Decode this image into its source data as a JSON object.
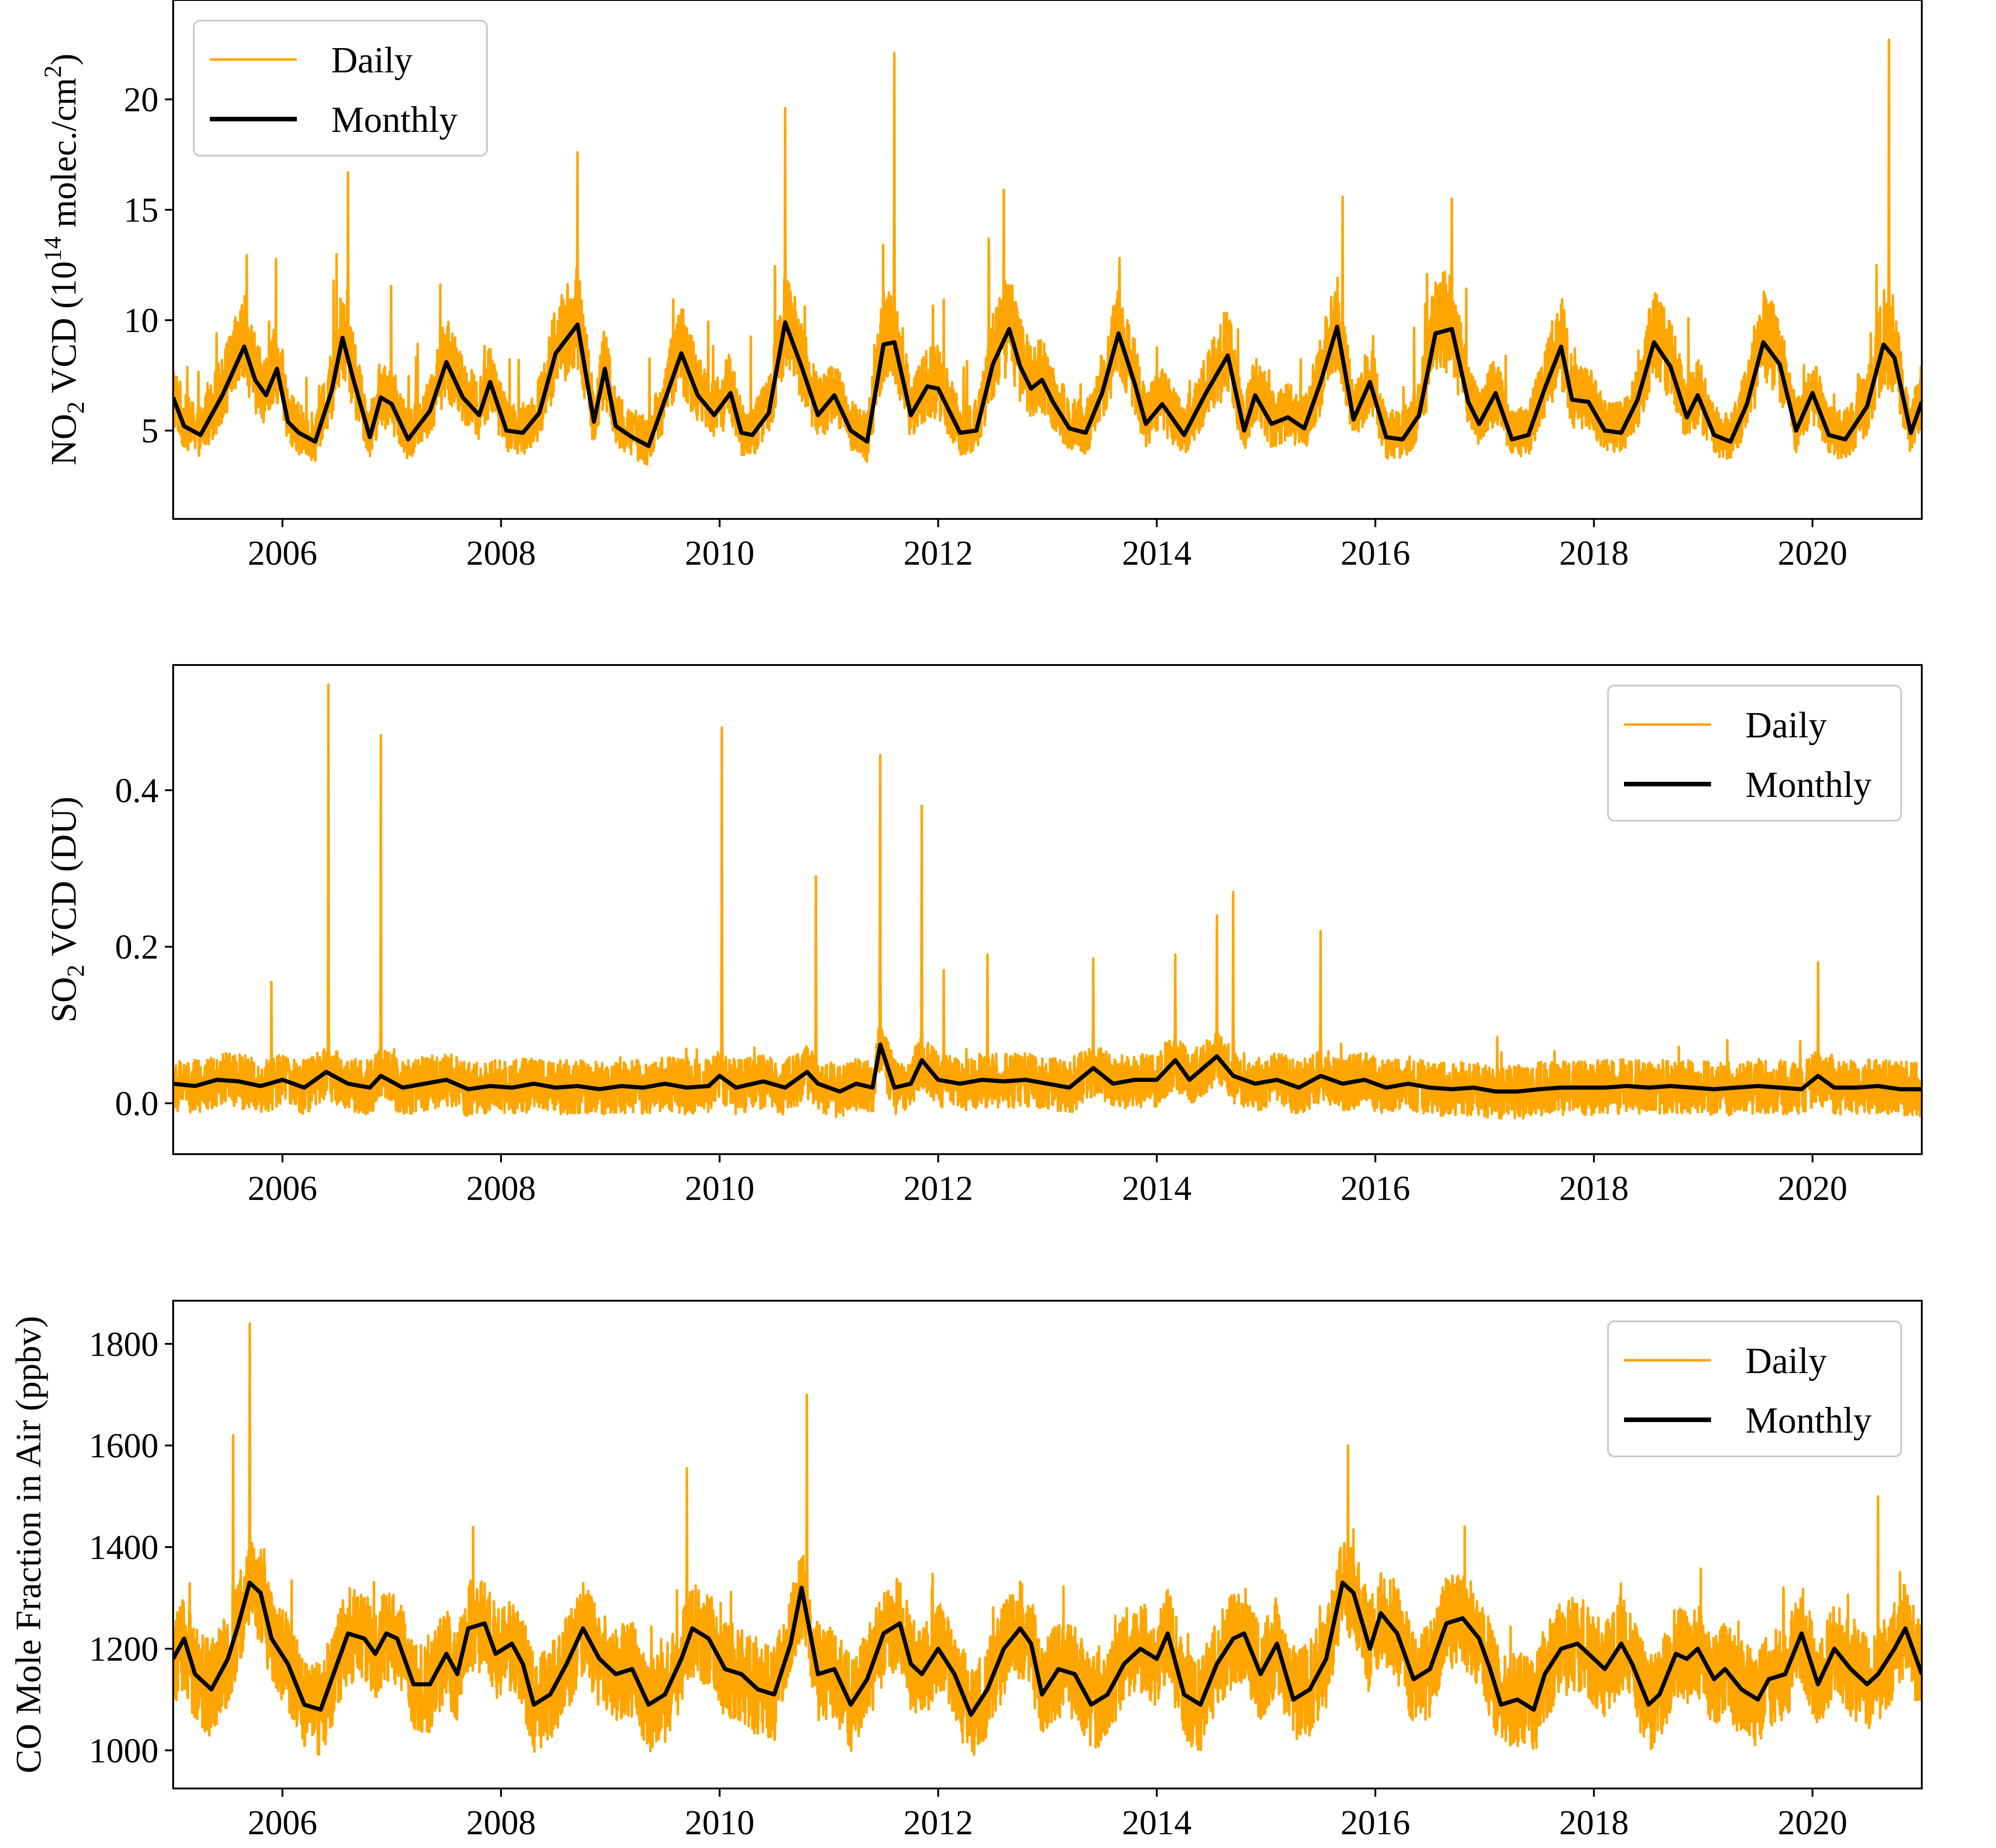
{
  "colors": {
    "daily": "#FFA500",
    "monthly": "#000000",
    "axes": "#000000"
  },
  "chart_data": [
    {
      "id": "no2",
      "type": "line",
      "ylabel_parts": {
        "pre": "NO",
        "sub1": "2",
        "mid": " VCD (10",
        "sup1": "14",
        "mid2": " molec./cm",
        "sup2": "2",
        "post": ")"
      },
      "xlim": [
        2005.0,
        2021.0
      ],
      "ylim": [
        1.0,
        24.5
      ],
      "xticks": [
        2006,
        2008,
        2010,
        2012,
        2014,
        2016,
        2018,
        2020
      ],
      "xtick_labels": [
        "2006",
        "2008",
        "2010",
        "2012",
        "2014",
        "2016",
        "2018",
        "2020"
      ],
      "yticks": [
        5,
        10,
        15,
        20
      ],
      "ytick_labels": [
        "5",
        "10",
        "15",
        "20"
      ],
      "legend": {
        "location": "upper-left",
        "entries": [
          "Daily",
          "Monthly"
        ]
      },
      "daily": {
        "name": "Daily",
        "baseline_low": 2.5,
        "spike_max": 22.7,
        "notable_peaks": [
          {
            "x": 2006.6,
            "y": 16.7
          },
          {
            "x": 2008.7,
            "y": 17.6
          },
          {
            "x": 2010.6,
            "y": 19.6
          },
          {
            "x": 2011.6,
            "y": 22.1
          },
          {
            "x": 2012.6,
            "y": 15.9
          },
          {
            "x": 2015.7,
            "y": 15.6
          },
          {
            "x": 2016.7,
            "y": 15.5
          },
          {
            "x": 2020.7,
            "y": 22.7
          }
        ]
      },
      "monthly": {
        "name": "Monthly",
        "x": [
          2005.0,
          2005.1,
          2005.25,
          2005.45,
          2005.65,
          2005.75,
          2005.85,
          2005.95,
          2006.05,
          2006.15,
          2006.3,
          2006.45,
          2006.55,
          2006.65,
          2006.8,
          2006.9,
          2007.0,
          2007.15,
          2007.35,
          2007.5,
          2007.65,
          2007.8,
          2007.9,
          2008.05,
          2008.2,
          2008.35,
          2008.5,
          2008.7,
          2008.85,
          2008.95,
          2009.05,
          2009.2,
          2009.35,
          2009.5,
          2009.65,
          2009.8,
          2009.95,
          2010.1,
          2010.2,
          2010.3,
          2010.45,
          2010.6,
          2010.75,
          2010.9,
          2011.05,
          2011.2,
          2011.35,
          2011.5,
          2011.6,
          2011.75,
          2011.9,
          2012.0,
          2012.2,
          2012.35,
          2012.5,
          2012.65,
          2012.75,
          2012.85,
          2012.95,
          2013.05,
          2013.2,
          2013.35,
          2013.5,
          2013.65,
          2013.8,
          2013.9,
          2014.05,
          2014.25,
          2014.45,
          2014.65,
          2014.8,
          2014.9,
          2015.05,
          2015.2,
          2015.35,
          2015.5,
          2015.65,
          2015.8,
          2015.95,
          2016.1,
          2016.25,
          2016.4,
          2016.55,
          2016.7,
          2016.85,
          2016.95,
          2017.1,
          2017.25,
          2017.4,
          2017.55,
          2017.7,
          2017.8,
          2017.95,
          2018.1,
          2018.25,
          2018.4,
          2018.55,
          2018.7,
          2018.85,
          2018.95,
          2019.1,
          2019.25,
          2019.4,
          2019.55,
          2019.7,
          2019.85,
          2020.0,
          2020.15,
          2020.3,
          2020.5,
          2020.65,
          2020.75,
          2020.9,
          2021.0
        ],
        "y": [
          6.5,
          5.2,
          4.8,
          6.6,
          8.8,
          7.3,
          6.6,
          7.8,
          5.4,
          4.9,
          4.5,
          6.8,
          9.2,
          7.3,
          4.7,
          6.5,
          6.2,
          4.6,
          5.9,
          8.1,
          6.5,
          5.7,
          7.2,
          5.0,
          4.9,
          5.8,
          8.5,
          9.8,
          5.4,
          7.8,
          5.2,
          4.7,
          4.3,
          6.4,
          8.5,
          6.6,
          5.7,
          6.7,
          4.9,
          4.8,
          5.8,
          9.9,
          7.9,
          5.7,
          6.6,
          5.0,
          4.5,
          8.9,
          9.0,
          5.7,
          7.0,
          6.9,
          4.9,
          5.0,
          8.0,
          9.6,
          7.9,
          6.9,
          7.3,
          6.3,
          5.1,
          4.9,
          6.7,
          9.4,
          7.1,
          5.3,
          6.2,
          4.8,
          6.7,
          8.4,
          5.0,
          6.6,
          5.3,
          5.6,
          5.1,
          7.2,
          9.7,
          5.5,
          7.2,
          4.7,
          4.6,
          5.7,
          9.4,
          9.6,
          6.3,
          5.3,
          6.7,
          4.6,
          4.8,
          6.9,
          8.8,
          6.4,
          6.3,
          5.0,
          4.9,
          6.4,
          9.0,
          7.9,
          5.6,
          6.6,
          4.8,
          4.5,
          6.2,
          9.0,
          8.0,
          5.0,
          6.7,
          4.8,
          4.6,
          6.1,
          8.9,
          8.3,
          4.9,
          6.3
        ]
      }
    },
    {
      "id": "so2",
      "type": "line",
      "ylabel_parts": {
        "pre": "SO",
        "sub1": "2",
        "post": " VCD (DU)"
      },
      "xlim": [
        2005.0,
        2021.0
      ],
      "ylim": [
        -0.065,
        0.56
      ],
      "xticks": [
        2006,
        2008,
        2010,
        2012,
        2014,
        2016,
        2018,
        2020
      ],
      "xtick_labels": [
        "2006",
        "2008",
        "2010",
        "2012",
        "2014",
        "2016",
        "2018",
        "2020"
      ],
      "yticks": [
        0.0,
        0.2,
        0.4
      ],
      "ytick_labels": [
        "0.0",
        "0.2",
        "0.4"
      ],
      "legend": {
        "location": "upper-right",
        "entries": [
          "Daily",
          "Monthly"
        ]
      },
      "daily": {
        "name": "Daily",
        "baseline_low": -0.03,
        "spike_max": 0.535,
        "notable_peaks": [
          {
            "x": 2005.9,
            "y": 0.155
          },
          {
            "x": 2006.42,
            "y": 0.535
          },
          {
            "x": 2006.9,
            "y": 0.47
          },
          {
            "x": 2010.02,
            "y": 0.48
          },
          {
            "x": 2010.88,
            "y": 0.29
          },
          {
            "x": 2011.47,
            "y": 0.445
          },
          {
            "x": 2011.85,
            "y": 0.38
          },
          {
            "x": 2012.05,
            "y": 0.17
          },
          {
            "x": 2012.45,
            "y": 0.19
          },
          {
            "x": 2013.42,
            "y": 0.185
          },
          {
            "x": 2014.17,
            "y": 0.19
          },
          {
            "x": 2014.55,
            "y": 0.24
          },
          {
            "x": 2014.7,
            "y": 0.27
          },
          {
            "x": 2015.5,
            "y": 0.22
          },
          {
            "x": 2020.05,
            "y": 0.18
          }
        ]
      },
      "monthly": {
        "name": "Monthly",
        "x": [
          2005.0,
          2005.2,
          2005.4,
          2005.6,
          2005.8,
          2006.0,
          2006.2,
          2006.4,
          2006.6,
          2006.8,
          2006.9,
          2007.1,
          2007.3,
          2007.5,
          2007.7,
          2007.9,
          2008.1,
          2008.3,
          2008.5,
          2008.7,
          2008.9,
          2009.1,
          2009.3,
          2009.5,
          2009.7,
          2009.9,
          2010.0,
          2010.15,
          2010.4,
          2010.6,
          2010.8,
          2010.9,
          2011.1,
          2011.25,
          2011.4,
          2011.47,
          2011.6,
          2011.75,
          2011.85,
          2012.0,
          2012.2,
          2012.4,
          2012.6,
          2012.8,
          2013.0,
          2013.2,
          2013.42,
          2013.6,
          2013.8,
          2014.0,
          2014.17,
          2014.3,
          2014.55,
          2014.7,
          2014.9,
          2015.1,
          2015.3,
          2015.5,
          2015.7,
          2015.9,
          2016.1,
          2016.3,
          2016.5,
          2016.7,
          2016.9,
          2017.1,
          2017.3,
          2017.5,
          2017.7,
          2017.9,
          2018.1,
          2018.3,
          2018.5,
          2018.7,
          2018.9,
          2019.1,
          2019.3,
          2019.5,
          2019.7,
          2019.9,
          2020.05,
          2020.2,
          2020.4,
          2020.6,
          2020.8,
          2021.0
        ],
        "y": [
          0.025,
          0.022,
          0.03,
          0.028,
          0.022,
          0.03,
          0.02,
          0.04,
          0.025,
          0.02,
          0.035,
          0.02,
          0.025,
          0.03,
          0.018,
          0.022,
          0.02,
          0.025,
          0.02,
          0.022,
          0.018,
          0.022,
          0.02,
          0.025,
          0.02,
          0.022,
          0.035,
          0.02,
          0.028,
          0.02,
          0.04,
          0.025,
          0.015,
          0.025,
          0.02,
          0.075,
          0.02,
          0.025,
          0.055,
          0.03,
          0.025,
          0.03,
          0.028,
          0.03,
          0.025,
          0.02,
          0.045,
          0.025,
          0.03,
          0.03,
          0.055,
          0.03,
          0.06,
          0.035,
          0.025,
          0.03,
          0.02,
          0.035,
          0.025,
          0.03,
          0.02,
          0.025,
          0.02,
          0.018,
          0.02,
          0.015,
          0.015,
          0.018,
          0.02,
          0.02,
          0.02,
          0.022,
          0.02,
          0.022,
          0.02,
          0.018,
          0.02,
          0.022,
          0.02,
          0.018,
          0.035,
          0.02,
          0.02,
          0.022,
          0.018,
          0.018
        ]
      }
    },
    {
      "id": "co",
      "type": "line",
      "ylabel_parts": {
        "pre": "CO Mole Fraction in Air (ppbv)"
      },
      "xlim": [
        2005.0,
        2021.0
      ],
      "ylim": [
        925,
        1885
      ],
      "xticks": [
        2006,
        2008,
        2010,
        2012,
        2014,
        2016,
        2018,
        2020
      ],
      "xtick_labels": [
        "2006",
        "2008",
        "2010",
        "2012",
        "2014",
        "2016",
        "2018",
        "2020"
      ],
      "yticks": [
        1000,
        1200,
        1400,
        1600,
        1800
      ],
      "ytick_labels": [
        "1000",
        "1200",
        "1400",
        "1600",
        "1800"
      ],
      "legend": {
        "location": "upper-right",
        "entries": [
          "Daily",
          "Monthly"
        ]
      },
      "daily": {
        "name": "Daily",
        "baseline_low": 960,
        "spike_max": 1840,
        "notable_peaks": [
          {
            "x": 2005.7,
            "y": 1840
          },
          {
            "x": 2005.55,
            "y": 1620
          },
          {
            "x": 2009.7,
            "y": 1555
          },
          {
            "x": 2010.8,
            "y": 1700
          },
          {
            "x": 2015.75,
            "y": 1600
          },
          {
            "x": 2020.6,
            "y": 1500
          }
        ]
      },
      "monthly": {
        "name": "Monthly",
        "x": [
          2005.0,
          2005.1,
          2005.2,
          2005.35,
          2005.5,
          2005.6,
          2005.7,
          2005.8,
          2005.9,
          2006.05,
          2006.2,
          2006.35,
          2006.5,
          2006.6,
          2006.75,
          2006.85,
          2006.95,
          2007.05,
          2007.2,
          2007.35,
          2007.5,
          2007.6,
          2007.7,
          2007.85,
          2007.95,
          2008.1,
          2008.2,
          2008.3,
          2008.45,
          2008.6,
          2008.75,
          2008.9,
          2009.05,
          2009.2,
          2009.35,
          2009.5,
          2009.65,
          2009.75,
          2009.9,
          2010.05,
          2010.2,
          2010.35,
          2010.5,
          2010.65,
          2010.75,
          2010.9,
          2011.05,
          2011.2,
          2011.35,
          2011.5,
          2011.65,
          2011.75,
          2011.85,
          2012.0,
          2012.15,
          2012.3,
          2012.45,
          2012.6,
          2012.75,
          2012.85,
          2012.95,
          2013.1,
          2013.25,
          2013.4,
          2013.55,
          2013.7,
          2013.85,
          2014.0,
          2014.1,
          2014.25,
          2014.4,
          2014.55,
          2014.7,
          2014.8,
          2014.95,
          2015.1,
          2015.25,
          2015.4,
          2015.55,
          2015.7,
          2015.8,
          2015.95,
          2016.05,
          2016.2,
          2016.35,
          2016.5,
          2016.65,
          2016.8,
          2016.95,
          2017.05,
          2017.15,
          2017.3,
          2017.45,
          2017.55,
          2017.7,
          2017.85,
          2018.0,
          2018.1,
          2018.25,
          2018.35,
          2018.5,
          2018.6,
          2018.75,
          2018.85,
          2018.95,
          2019.1,
          2019.2,
          2019.35,
          2019.5,
          2019.6,
          2019.75,
          2019.9,
          2020.05,
          2020.2,
          2020.35,
          2020.5,
          2020.6,
          2020.75,
          2020.85,
          2021.0
        ],
        "y": [
          1180,
          1220,
          1150,
          1120,
          1180,
          1250,
          1330,
          1310,
          1220,
          1170,
          1090,
          1080,
          1170,
          1230,
          1220,
          1190,
          1230,
          1220,
          1130,
          1130,
          1190,
          1150,
          1240,
          1250,
          1190,
          1210,
          1170,
          1090,
          1110,
          1170,
          1240,
          1180,
          1150,
          1160,
          1090,
          1110,
          1180,
          1240,
          1220,
          1160,
          1150,
          1120,
          1110,
          1210,
          1320,
          1150,
          1160,
          1090,
          1140,
          1230,
          1250,
          1170,
          1150,
          1200,
          1150,
          1070,
          1120,
          1200,
          1240,
          1210,
          1110,
          1160,
          1150,
          1090,
          1110,
          1170,
          1200,
          1180,
          1230,
          1110,
          1090,
          1170,
          1220,
          1230,
          1150,
          1210,
          1100,
          1120,
          1180,
          1330,
          1310,
          1200,
          1270,
          1230,
          1140,
          1160,
          1250,
          1260,
          1220,
          1160,
          1090,
          1100,
          1080,
          1150,
          1200,
          1210,
          1180,
          1160,
          1210,
          1170,
          1090,
          1110,
          1190,
          1180,
          1200,
          1140,
          1160,
          1120,
          1100,
          1140,
          1150,
          1230,
          1130,
          1200,
          1160,
          1130,
          1150,
          1200,
          1240,
          1150
        ]
      }
    }
  ]
}
